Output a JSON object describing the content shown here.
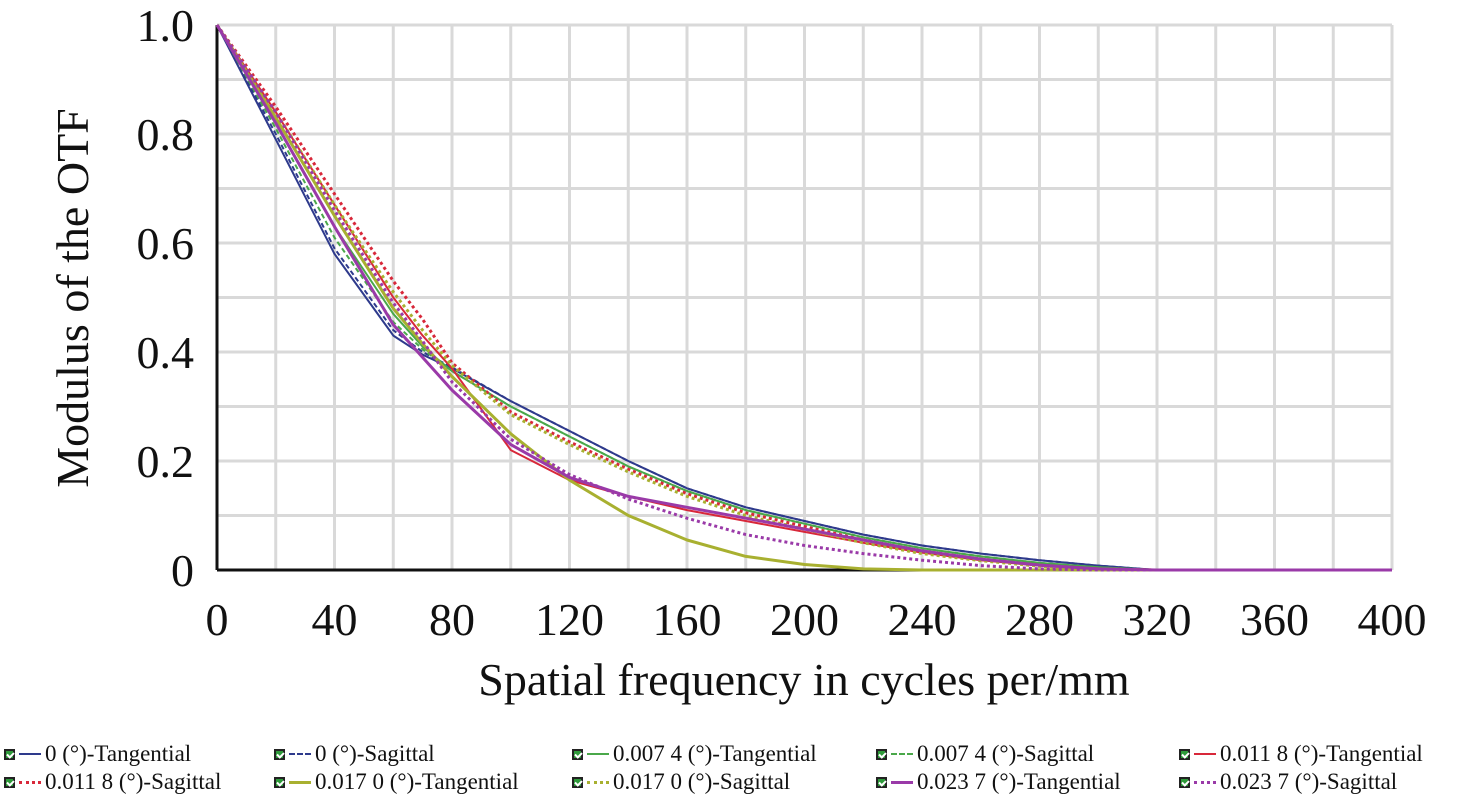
{
  "chart_data": {
    "type": "line",
    "xlabel": "Spatial frequency in cycles per/mm",
    "ylabel": "Modulus of the OTF",
    "xlim": [
      0,
      400
    ],
    "ylim": [
      0,
      1.0
    ],
    "x_ticks": [
      "0",
      "40",
      "80",
      "120",
      "160",
      "200",
      "240",
      "280",
      "320",
      "360",
      "400"
    ],
    "y_ticks": [
      "0",
      "0.2",
      "0.4",
      "0.6",
      "0.8",
      "1.0"
    ],
    "grid": true,
    "legend_position": "bottom",
    "x": [
      0,
      20,
      40,
      60,
      70,
      80,
      100,
      120,
      140,
      160,
      180,
      200,
      220,
      240,
      260,
      280,
      300,
      320,
      360,
      400
    ],
    "series": [
      {
        "name": "0 (°)-Tangential",
        "color": "#2e3a8c",
        "dash": "solid",
        "width": 2,
        "values": [
          1.0,
          0.79,
          0.58,
          0.43,
          0.395,
          0.37,
          0.31,
          0.255,
          0.2,
          0.15,
          0.115,
          0.09,
          0.065,
          0.045,
          0.03,
          0.018,
          0.008,
          0.0,
          0.0,
          0.0
        ]
      },
      {
        "name": "0 (°)-Sagittal",
        "color": "#2e3a8c",
        "dash": "dashed",
        "width": 2,
        "values": [
          1.0,
          0.8,
          0.59,
          0.44,
          0.4,
          0.372,
          0.31,
          0.255,
          0.2,
          0.15,
          0.115,
          0.09,
          0.065,
          0.045,
          0.03,
          0.018,
          0.008,
          0.0,
          0.0,
          0.0
        ]
      },
      {
        "name": "0.007 4 (°)-Tangential",
        "color": "#4aa84a",
        "dash": "solid",
        "width": 2,
        "values": [
          1.0,
          0.82,
          0.63,
          0.47,
          0.41,
          0.365,
          0.3,
          0.245,
          0.19,
          0.145,
          0.11,
          0.085,
          0.06,
          0.04,
          0.025,
          0.013,
          0.005,
          0.0,
          0.0,
          0.0
        ]
      },
      {
        "name": "0.007 4 (°)-Sagittal",
        "color": "#4aa84a",
        "dash": "dashed",
        "width": 2,
        "values": [
          1.0,
          0.81,
          0.61,
          0.455,
          0.405,
          0.365,
          0.3,
          0.245,
          0.19,
          0.145,
          0.11,
          0.085,
          0.06,
          0.04,
          0.025,
          0.013,
          0.005,
          0.0,
          0.0,
          0.0
        ]
      },
      {
        "name": "0.011 8 (°)-Tangential",
        "color": "#d8283a",
        "dash": "solid",
        "width": 2,
        "values": [
          1.0,
          0.84,
          0.67,
          0.5,
          0.43,
          0.37,
          0.22,
          0.165,
          0.135,
          0.11,
          0.09,
          0.07,
          0.05,
          0.032,
          0.018,
          0.008,
          0.0,
          0.0,
          0.0,
          0.0
        ]
      },
      {
        "name": "0.011 8 (°)-Sagittal",
        "color": "#d8283a",
        "dash": "dotted",
        "width": 3,
        "values": [
          1.0,
          0.85,
          0.69,
          0.53,
          0.46,
          0.38,
          0.29,
          0.235,
          0.185,
          0.14,
          0.105,
          0.08,
          0.055,
          0.035,
          0.02,
          0.009,
          0.002,
          0.0,
          0.0,
          0.0
        ]
      },
      {
        "name": "0.017 0 (°)-Tangential",
        "color": "#a8b030",
        "dash": "solid",
        "width": 3,
        "values": [
          1.0,
          0.83,
          0.65,
          0.48,
          0.415,
          0.355,
          0.25,
          0.165,
          0.1,
          0.055,
          0.025,
          0.01,
          0.002,
          0.0,
          0.0,
          0.0,
          0.0,
          0.0,
          0.0,
          0.0
        ]
      },
      {
        "name": "0.017 0 (°)-Sagittal",
        "color": "#a8b030",
        "dash": "dotted",
        "width": 3,
        "values": [
          1.0,
          0.84,
          0.67,
          0.51,
          0.44,
          0.375,
          0.285,
          0.23,
          0.18,
          0.135,
          0.1,
          0.075,
          0.05,
          0.03,
          0.017,
          0.007,
          0.001,
          0.0,
          0.0,
          0.0
        ]
      },
      {
        "name": "0.023 7 (°)-Tangential",
        "color": "#9a3aa8",
        "dash": "solid",
        "width": 3,
        "values": [
          1.0,
          0.82,
          0.63,
          0.45,
          0.39,
          0.33,
          0.23,
          0.17,
          0.135,
          0.115,
          0.095,
          0.075,
          0.055,
          0.035,
          0.02,
          0.009,
          0.002,
          0.0,
          0.0,
          0.0
        ]
      },
      {
        "name": "0.023 7 (°)-Sagittal",
        "color": "#9a3aa8",
        "dash": "dotted",
        "width": 3,
        "values": [
          1.0,
          0.84,
          0.66,
          0.49,
          0.42,
          0.345,
          0.24,
          0.175,
          0.13,
          0.095,
          0.065,
          0.045,
          0.03,
          0.018,
          0.008,
          0.002,
          0.0,
          0.0,
          0.0,
          0.0
        ]
      }
    ]
  }
}
